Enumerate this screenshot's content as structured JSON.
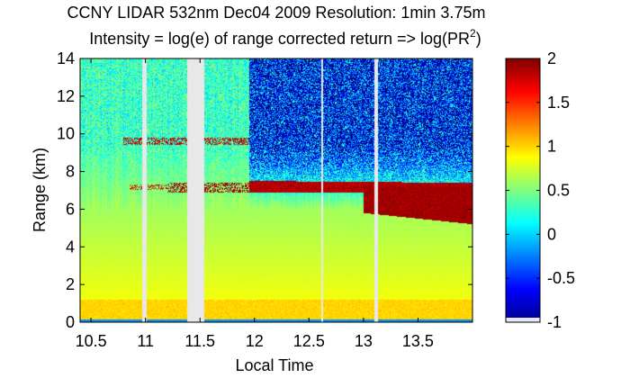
{
  "chart_data": {
    "type": "heatmap",
    "title": "CCNY LIDAR 532nm Dec04 2009 Resolution: 1min 3.75m",
    "subtitle_main": "Intensity = log(e) of range corrected return => log(PR",
    "subtitle_sup": "2",
    "subtitle_tail": ")",
    "xlabel": "Local Time",
    "ylabel": "Range (km)",
    "xlim": [
      10.4,
      14.0
    ],
    "ylim": [
      0,
      14
    ],
    "x_ticks": [
      {
        "value": 10.5,
        "label": "10.5"
      },
      {
        "value": 11,
        "label": "11"
      },
      {
        "value": 11.5,
        "label": "11.5"
      },
      {
        "value": 12,
        "label": "12"
      },
      {
        "value": 12.5,
        "label": "12.5"
      },
      {
        "value": 13,
        "label": "13"
      },
      {
        "value": 13.5,
        "label": "13.5"
      }
    ],
    "y_ticks": [
      {
        "value": 0,
        "label": "0"
      },
      {
        "value": 2,
        "label": "2"
      },
      {
        "value": 4,
        "label": "4"
      },
      {
        "value": 6,
        "label": "6"
      },
      {
        "value": 8,
        "label": "8"
      },
      {
        "value": 10,
        "label": "10"
      },
      {
        "value": 12,
        "label": "12"
      },
      {
        "value": 14,
        "label": "14"
      }
    ],
    "colorbar": {
      "clim": [
        -1,
        2
      ],
      "ticks": [
        {
          "value": 2,
          "label": "2"
        },
        {
          "value": 1.5,
          "label": "1.5"
        },
        {
          "value": 1,
          "label": "1"
        },
        {
          "value": 0.5,
          "label": "0.5"
        },
        {
          "value": 0,
          "label": "0"
        },
        {
          "value": -0.5,
          "label": "-0.5"
        },
        {
          "value": -1,
          "label": "-1"
        }
      ],
      "colormap": "jet"
    },
    "data_gaps": [
      {
        "start": 10.97,
        "end": 11.01
      },
      {
        "start": 11.38,
        "end": 11.54
      },
      {
        "start": 12.61,
        "end": 12.63
      },
      {
        "start": 13.1,
        "end": 13.13
      }
    ],
    "features": {
      "background_intensity_low_altitude": 0.6,
      "background_intensity_high_altitude_early": 0.3,
      "background_intensity_high_altitude_late": -0.6,
      "cloud_layer_upper": {
        "time_range": [
          10.8,
          11.95
        ],
        "altitude_km": [
          9.4,
          9.8
        ],
        "intensity": 1.8
      },
      "cloud_layer_mid": {
        "time_range": [
          11.95,
          14.0
        ],
        "altitude_km": [
          6.9,
          7.5
        ],
        "intensity": 2.0
      },
      "cloud_thick_late": {
        "time_range": [
          13.0,
          14.0
        ],
        "altitude_km": [
          5.2,
          7.2
        ],
        "intensity": 2.0
      },
      "boundary_layer_top_km": 1.2
    }
  }
}
